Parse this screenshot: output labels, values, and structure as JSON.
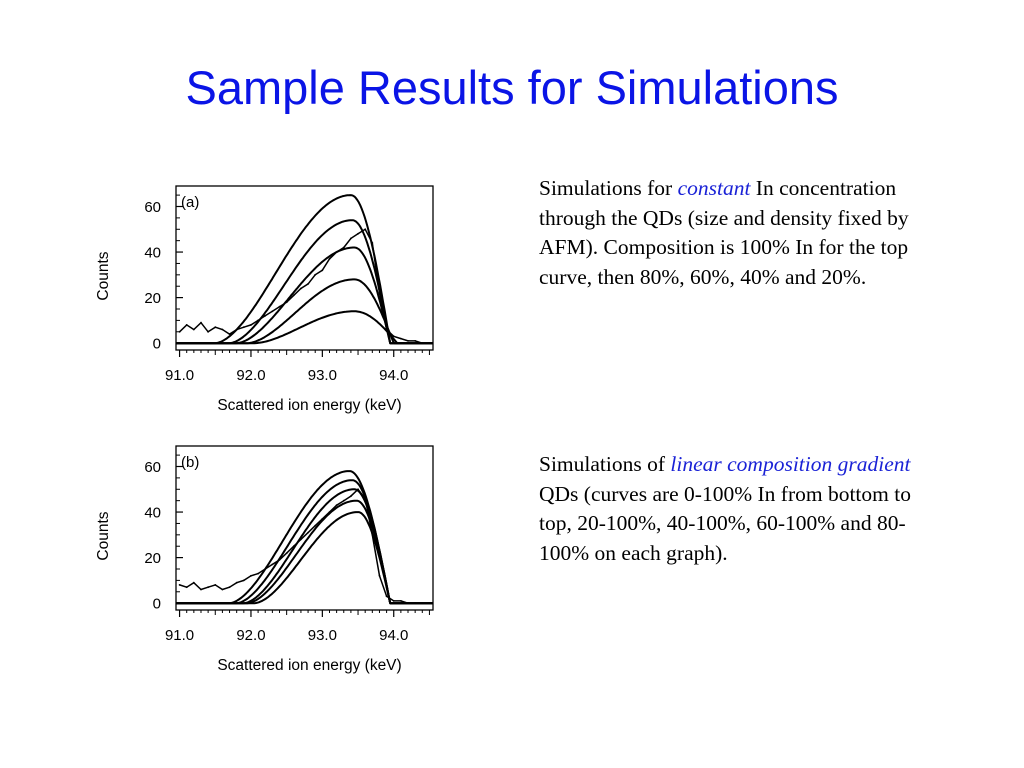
{
  "slide": {
    "title": "Sample Results for Simulations",
    "title_color": "#0a14e6",
    "accent_color": "#1a22d6"
  },
  "captions": [
    {
      "before": "Simulations for ",
      "emphasis": "constant",
      "after": " In concentration through the QDs (size and density fixed by AFM). Composition is 100% In for the top curve, then 80%, 60%, 40% and 20%."
    },
    {
      "before": "Simulations of ",
      "emphasis": "linear composition gradient",
      "after": " QDs (curves are 0-100% In from bottom to top, 20-100%, 40-100%, 60-100% and 80-100% on each graph)."
    }
  ],
  "chart_data": [
    {
      "type": "line",
      "panel_label": "(a)",
      "xlabel": "Scattered ion energy (keV)",
      "ylabel": "Counts",
      "xlim": [
        90.95,
        94.55
      ],
      "ylim": [
        -3,
        69
      ],
      "xticks": [
        91.0,
        92.0,
        93.0,
        94.0
      ],
      "xtick_labels": [
        "91.0",
        "92.0",
        "93.0",
        "94.0"
      ],
      "yticks": [
        0,
        20,
        40,
        60
      ],
      "ytick_labels": [
        "0",
        "20",
        "40",
        "60"
      ],
      "grid": false,
      "simulated_curves": [
        {
          "peak_x": 93.4,
          "peak_y": 65,
          "onset_x": 91.5,
          "end_x": 93.95
        },
        {
          "peak_x": 93.42,
          "peak_y": 54,
          "onset_x": 91.7,
          "end_x": 93.95
        },
        {
          "peak_x": 93.45,
          "peak_y": 42,
          "onset_x": 91.8,
          "end_x": 93.95
        },
        {
          "peak_x": 93.45,
          "peak_y": 28,
          "onset_x": 91.95,
          "end_x": 94.0
        },
        {
          "peak_x": 93.45,
          "peak_y": 14,
          "onset_x": 92.05,
          "end_x": 94.05
        }
      ],
      "measured": {
        "x": [
          91.0,
          91.1,
          91.2,
          91.3,
          91.4,
          91.5,
          91.6,
          91.7,
          91.8,
          91.9,
          92.0,
          92.1,
          92.2,
          92.3,
          92.4,
          92.5,
          92.6,
          92.7,
          92.8,
          92.9,
          93.0,
          93.1,
          93.2,
          93.3,
          93.4,
          93.5,
          93.6,
          93.7,
          93.8,
          93.9,
          94.0,
          94.1,
          94.2,
          94.3,
          94.4,
          94.5
        ],
        "y": [
          5,
          8,
          6,
          9,
          5,
          7,
          6,
          4,
          6,
          7,
          8,
          10,
          12,
          14,
          16,
          18,
          21,
          24,
          26,
          30,
          32,
          37,
          40,
          42,
          46,
          48,
          50,
          44,
          22,
          6,
          3,
          2,
          1,
          1,
          0,
          0
        ]
      }
    },
    {
      "type": "line",
      "panel_label": "(b)",
      "xlabel": "Scattered ion energy (keV)",
      "ylabel": "Counts",
      "xlim": [
        90.95,
        94.55
      ],
      "ylim": [
        -3,
        69
      ],
      "xticks": [
        91.0,
        92.0,
        93.0,
        94.0
      ],
      "xtick_labels": [
        "91.0",
        "92.0",
        "93.0",
        "94.0"
      ],
      "yticks": [
        0,
        20,
        40,
        60
      ],
      "ytick_labels": [
        "0",
        "20",
        "40",
        "60"
      ],
      "grid": false,
      "simulated_curves": [
        {
          "peak_x": 93.38,
          "peak_y": 58,
          "onset_x": 91.7,
          "end_x": 93.95
        },
        {
          "peak_x": 93.42,
          "peak_y": 54,
          "onset_x": 91.8,
          "end_x": 93.95
        },
        {
          "peak_x": 93.45,
          "peak_y": 50,
          "onset_x": 91.9,
          "end_x": 93.95
        },
        {
          "peak_x": 93.48,
          "peak_y": 45,
          "onset_x": 91.95,
          "end_x": 93.95
        },
        {
          "peak_x": 93.5,
          "peak_y": 40,
          "onset_x": 92.05,
          "end_x": 93.95
        }
      ],
      "measured": {
        "x": [
          91.0,
          91.1,
          91.2,
          91.3,
          91.4,
          91.5,
          91.6,
          91.7,
          91.8,
          91.9,
          92.0,
          92.1,
          92.2,
          92.3,
          92.4,
          92.5,
          92.6,
          92.7,
          92.8,
          92.9,
          93.0,
          93.1,
          93.2,
          93.3,
          93.4,
          93.5,
          93.6,
          93.7,
          93.8,
          93.9,
          94.0,
          94.1,
          94.2,
          94.3,
          94.4,
          94.5
        ],
        "y": [
          8,
          7,
          9,
          6,
          7,
          8,
          6,
          7,
          9,
          10,
          12,
          13,
          15,
          17,
          19,
          22,
          25,
          28,
          31,
          34,
          37,
          40,
          43,
          45,
          47,
          50,
          46,
          30,
          12,
          3,
          1,
          1,
          0,
          0,
          0,
          0
        ]
      }
    }
  ]
}
